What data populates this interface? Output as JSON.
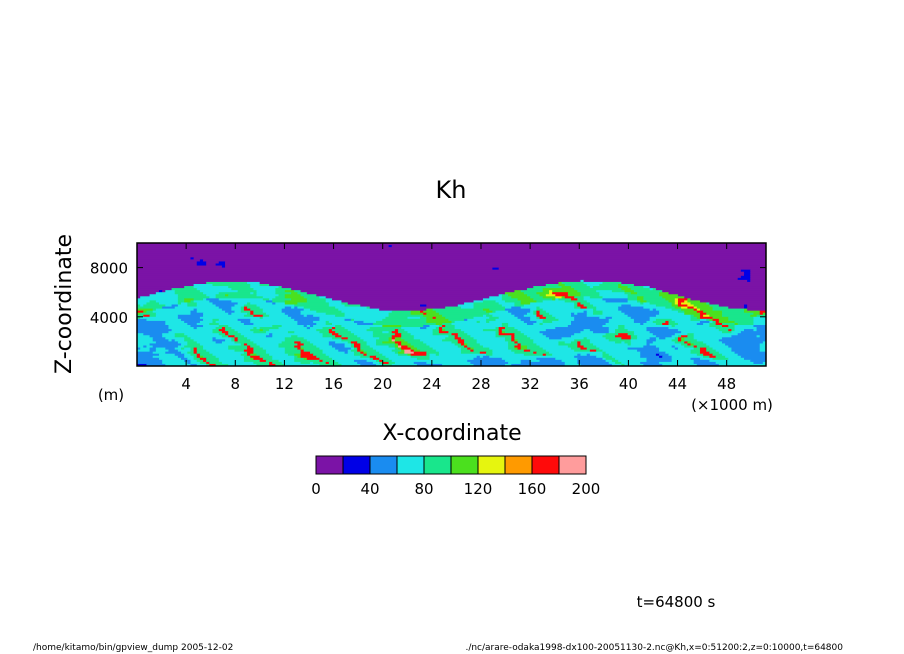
{
  "chart_data": {
    "type": "heatmap",
    "title": "Kh",
    "xlabel": "X-coordinate",
    "ylabel": "Z-coordinate",
    "x_unit": "(×1000 m)",
    "y_unit": "(m)",
    "xlim": [
      0,
      51.2
    ],
    "ylim": [
      0,
      10000
    ],
    "x_ticks": [
      4,
      8,
      12,
      16,
      20,
      24,
      28,
      32,
      36,
      40,
      44,
      48
    ],
    "y_ticks": [
      4000,
      8000
    ],
    "colorbar": {
      "levels": [
        0,
        20,
        40,
        60,
        80,
        100,
        120,
        140,
        160,
        180,
        200
      ],
      "tick_labels": [
        "0",
        "40",
        "80",
        "120",
        "160",
        "200"
      ],
      "colors": [
        "#7b13a6",
        "#0000e6",
        "#1a8cf0",
        "#1ee6e6",
        "#19e68c",
        "#4be01e",
        "#e6f50f",
        "#ff9a00",
        "#ff0a0a",
        "#ff9c9c"
      ]
    },
    "field_description_note": null
  },
  "annotations": {
    "time": "t=64800 s",
    "footer_left": "/home/kitamo/bin/gpview_dump  2005-12-02",
    "footer_right": "./nc/arare-odaka1998-dx100-20051130-2.nc@Kh,x=0:51200:2,z=0:10000,t=64800"
  }
}
